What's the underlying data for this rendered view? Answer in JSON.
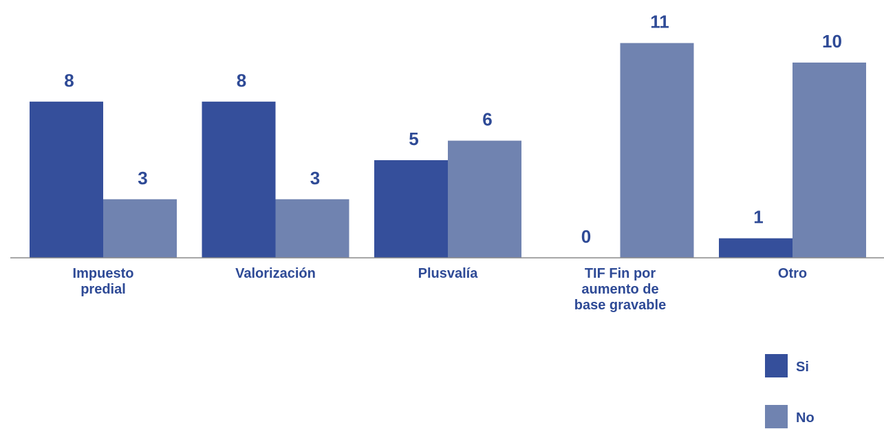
{
  "chart_data": {
    "type": "bar",
    "categories": [
      "Impuesto predial",
      "Valorización",
      "Plusvalía",
      "TIF Fin por aumento de base gravable",
      "Otro"
    ],
    "series": [
      {
        "name": "Si",
        "color": "#354f9b",
        "values": [
          8,
          8,
          5,
          0,
          1
        ]
      },
      {
        "name": "No",
        "color": "#7083b0",
        "values": [
          3,
          3,
          6,
          11,
          10
        ]
      }
    ]
  }
}
